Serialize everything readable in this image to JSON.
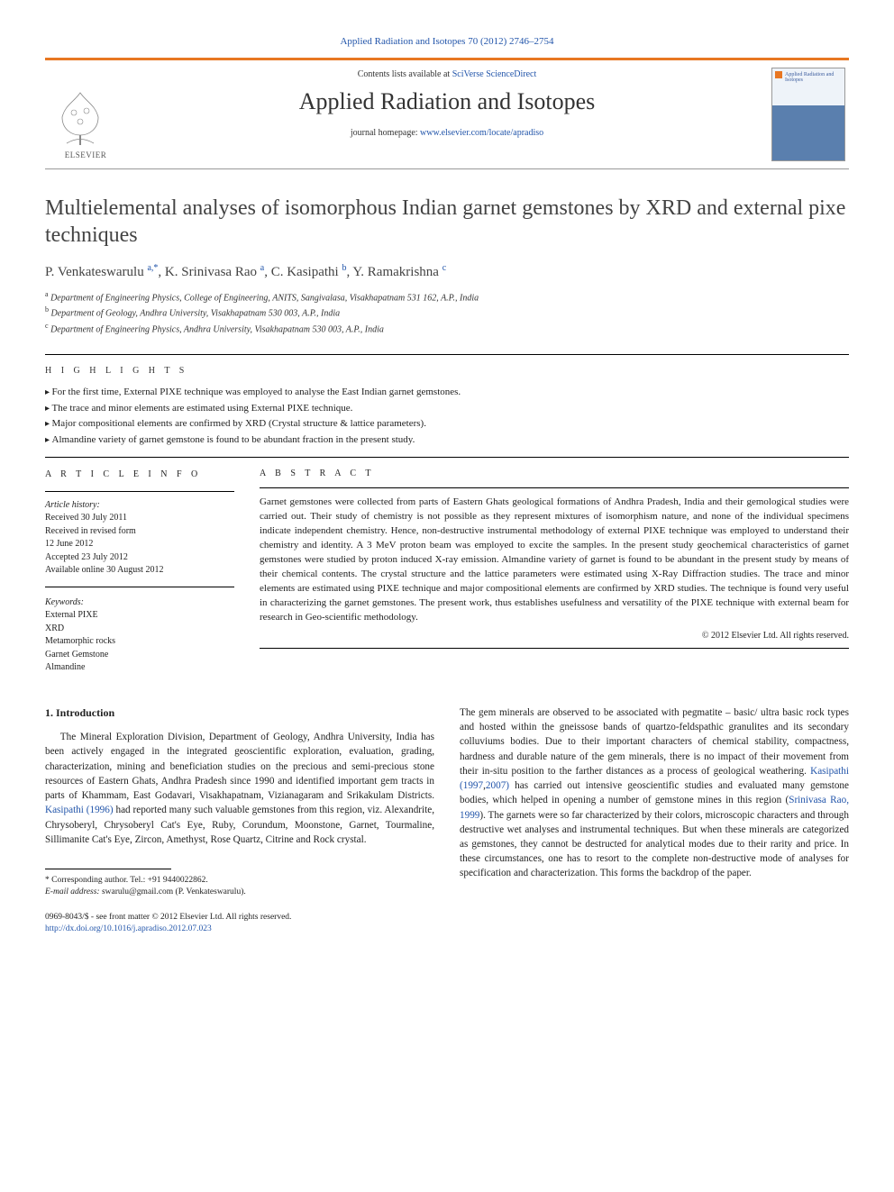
{
  "header": {
    "citation": "Applied Radiation and Isotopes 70 (2012) 2746–2754",
    "contents_prefix": "Contents lists available at ",
    "contents_link": "SciVerse ScienceDirect",
    "journal_name": "Applied Radiation and Isotopes",
    "homepage_prefix": "journal homepage: ",
    "homepage_link": "www.elsevier.com/locate/apradiso",
    "publisher": "ELSEVIER",
    "cover_text": "Applied Radiation and Isotopes"
  },
  "article": {
    "title": "Multielemental analyses of isomorphous Indian garnet gemstones by XRD and external pixe techniques",
    "authors_html": "P. Venkateswarulu <sup>a,*</sup>, K. Srinivasa Rao <sup>a</sup>, C. Kasipathi <sup>b</sup>, Y. Ramakrishna <sup>c</sup>",
    "affiliations": [
      "Department of Engineering Physics, College of Engineering, ANITS, Sangivalasa, Visakhapatnam 531 162, A.P., India",
      "Department of Geology, Andhra University, Visakhapatnam 530 003, A.P., India",
      "Department of Engineering Physics, Andhra University, Visakhapatnam 530 003, A.P., India"
    ],
    "aff_sup": [
      "a",
      "b",
      "c"
    ]
  },
  "highlights": {
    "heading": "H I G H L I G H T S",
    "items": [
      "For the first time, External PIXE technique was employed to analyse the East Indian garnet gemstones.",
      "The trace and minor elements are estimated using External PIXE technique.",
      "Major compositional elements are confirmed by XRD (Crystal structure & lattice parameters).",
      "Almandine variety of garnet gemstone is found to be abundant fraction in the present study."
    ]
  },
  "article_info": {
    "heading": "A R T I C L E  I N F O",
    "history_label": "Article history:",
    "history": [
      "Received 30 July 2011",
      "Received in revised form",
      "12 June 2012",
      "Accepted 23 July 2012",
      "Available online 30 August 2012"
    ],
    "keywords_label": "Keywords:",
    "keywords": [
      "External PIXE",
      "XRD",
      "Metamorphic rocks",
      "Garnet Gemstone",
      "Almandine"
    ]
  },
  "abstract": {
    "heading": "A B S T R A C T",
    "text": "Garnet gemstones were collected from parts of Eastern Ghats geological formations of Andhra Pradesh, India and their gemological studies were carried out. Their study of chemistry is not possible as they represent mixtures of isomorphism nature, and none of the individual specimens indicate independent chemistry. Hence, non-destructive instrumental methodology of external PIXE technique was employed to understand their chemistry and identity. A 3 MeV proton beam was employed to excite the samples. In the present study geochemical characteristics of garnet gemstones were studied by proton induced X-ray emission. Almandine variety of garnet is found to be abundant in the present study by means of their chemical contents. The crystal structure and the lattice parameters were estimated using X-Ray Diffraction studies. The trace and minor elements are estimated using PIXE technique and major compositional elements are confirmed by XRD studies. The technique is found very useful in characterizing the garnet gemstones. The present work, thus establishes usefulness and versatility of the PIXE technique with external beam for research in Geo-scientific methodology.",
    "copyright": "© 2012 Elsevier Ltd. All rights reserved."
  },
  "intro": {
    "heading": "1. Introduction",
    "col1": "The Mineral Exploration Division, Department of Geology, Andhra University, India has been actively engaged in the integrated geoscientific exploration, evaluation, grading, characterization, mining and beneficiation studies on the precious and semi-precious stone resources of Eastern Ghats, Andhra Pradesh since 1990 and identified important gem tracts in parts of Khammam, East Godavari, Visakhapatnam, Vizianagaram and Srikakulam Districts. Kasipathi (1996) had reported many such valuable gemstones from this region, viz. Alexandrite, Chrysoberyl, Chrysoberyl Cat's Eye, Ruby, Corundum, Moonstone, Garnet, Tourmaline, Sillimanite Cat's Eye, Zircon, Amethyst, Rose Quartz, Citrine and Rock crystal.",
    "col2": "The gem minerals are observed to be associated with pegmatite – basic/ ultra basic rock types and hosted within the gneissose bands of quartzo-feldspathic granulites and its secondary colluviums bodies. Due to their important characters of chemical stability, compactness, hardness and durable nature of the gem minerals, there is no impact of their movement from their in-situ position to the farther distances as a process of geological weathering. Kasipathi (1997,2007) has carried out intensive geoscientific studies and evaluated many gemstone bodies, which helped in opening a number of gemstone mines in this region (Srinivasa Rao, 1999). The garnets were so far characterized by their colors, microscopic characters and through destructive wet analyses and instrumental techniques. But when these minerals are categorized as gemstones, they cannot be destructed for analytical modes due to their rarity and price. In these circumstances, one has to resort to the complete non-destructive mode of analyses for specification and characterization. This forms the backdrop of the paper."
  },
  "footnotes": {
    "corr": "* Corresponding author. Tel.: +91 9440022862.",
    "email_label": "E-mail address: ",
    "email": "swarulu@gmail.com (P. Venkateswarulu)."
  },
  "footer": {
    "issn": "0969-8043/$ - see front matter © 2012 Elsevier Ltd. All rights reserved.",
    "doi": "http://dx.doi.org/10.1016/j.apradiso.2012.07.023"
  },
  "colors": {
    "accent_orange": "#e87722",
    "link_blue": "#2255aa",
    "text": "#222222",
    "heading_gray": "#434343"
  }
}
